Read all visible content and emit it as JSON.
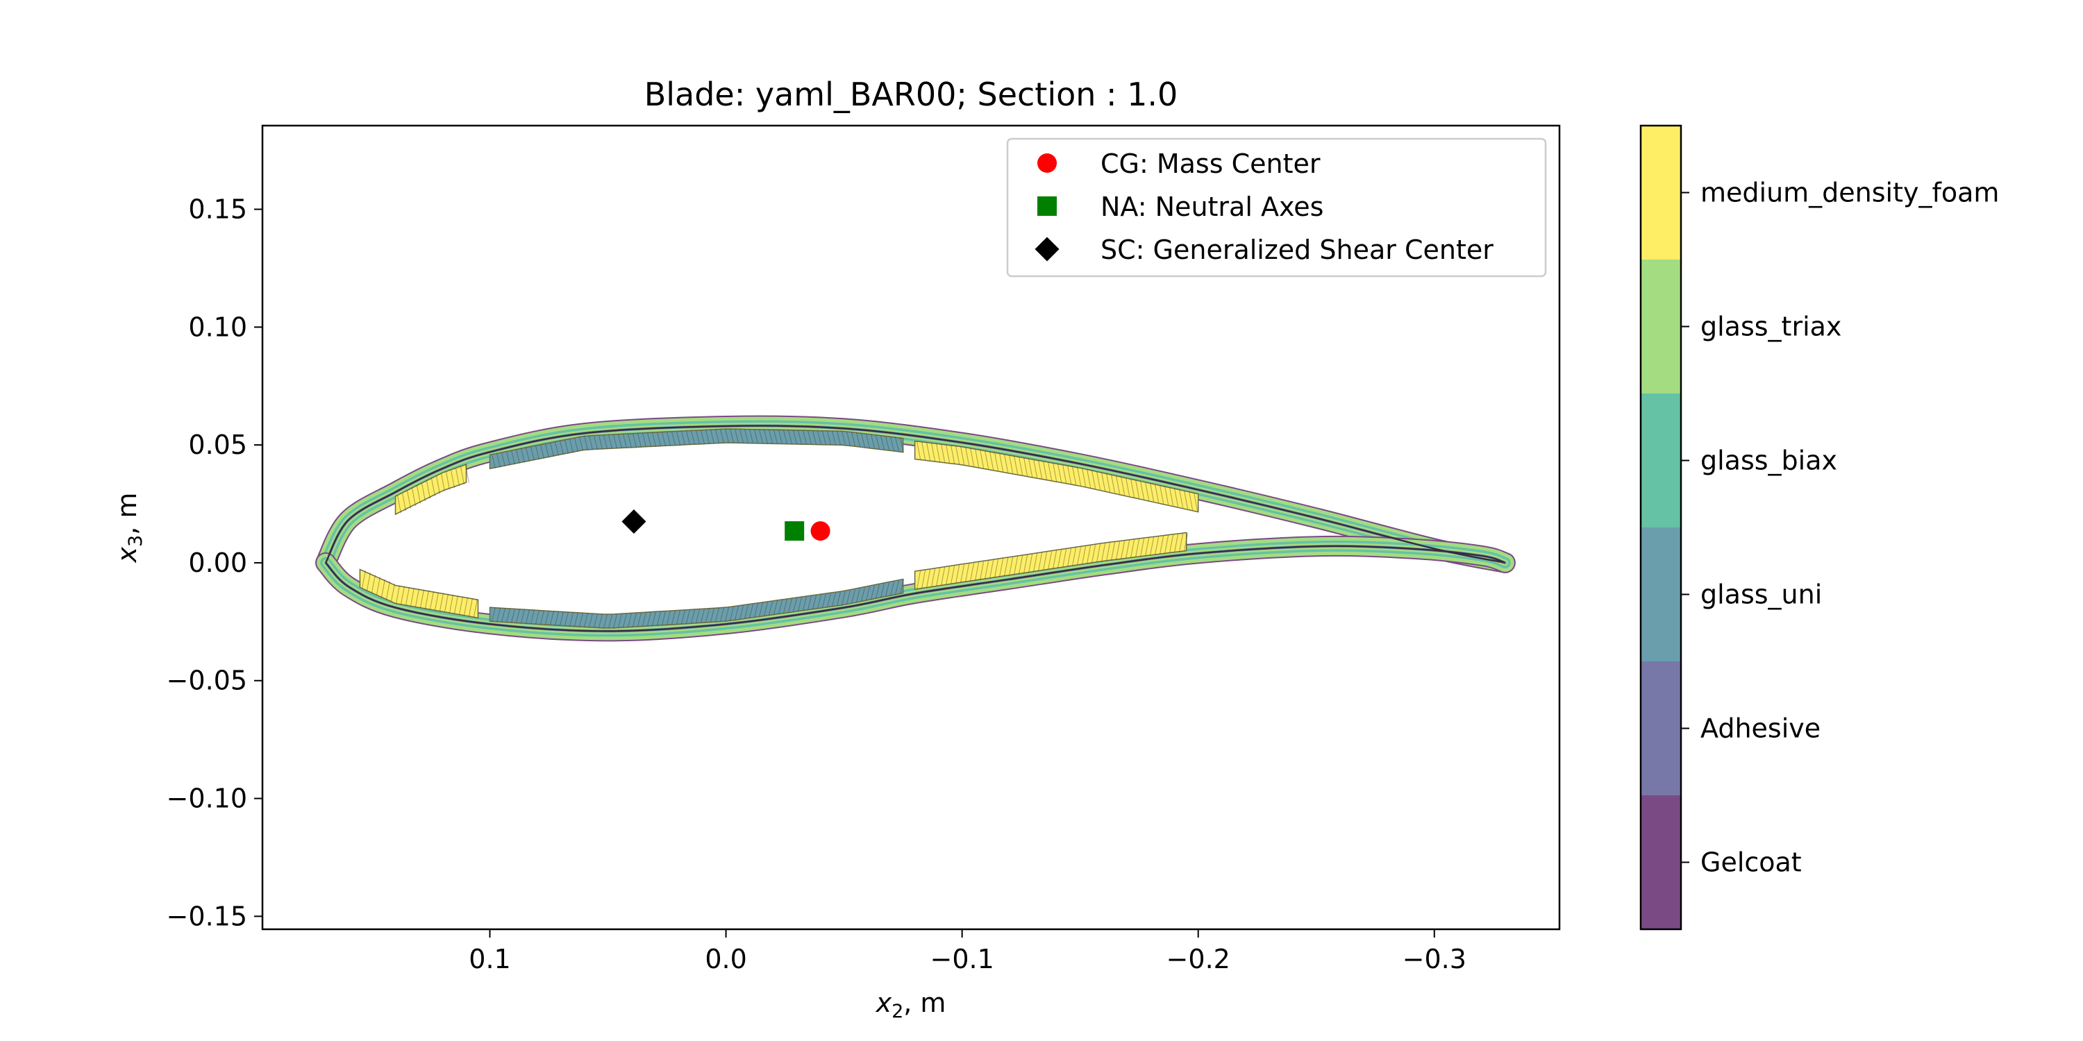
{
  "chart_data": {
    "type": "scatter",
    "title": "Blade: yaml_BAR00; Section : 1.0",
    "xlabel": {
      "base": "x",
      "sub": "2",
      "unit": ", m"
    },
    "ylabel": {
      "base": "x",
      "sub": "3",
      "unit": ", m"
    },
    "xlim": [
      0.1963,
      -0.353
    ],
    "ylim": [
      -0.1555,
      0.1855
    ],
    "x_inverted": true,
    "grid": false,
    "xticks": [
      {
        "value": 0.1,
        "label": "0.1"
      },
      {
        "value": 0.0,
        "label": "0.0"
      },
      {
        "value": -0.1,
        "label": "−0.1"
      },
      {
        "value": -0.2,
        "label": "−0.2"
      },
      {
        "value": -0.3,
        "label": "−0.3"
      }
    ],
    "yticks": [
      {
        "value": 0.15,
        "label": "0.15"
      },
      {
        "value": 0.1,
        "label": "0.10"
      },
      {
        "value": 0.05,
        "label": "0.05"
      },
      {
        "value": 0.0,
        "label": "0.00"
      },
      {
        "value": -0.05,
        "label": "−0.05"
      },
      {
        "value": -0.1,
        "label": "−0.10"
      },
      {
        "value": -0.15,
        "label": "−0.15"
      }
    ],
    "points": [
      {
        "name": "CG: Mass Center",
        "x": -0.04,
        "y": 0.0135,
        "marker": "circle",
        "color": "#ff0000"
      },
      {
        "name": "NA: Neutral Axes",
        "x": -0.029,
        "y": 0.0135,
        "marker": "square",
        "color": "#008000"
      },
      {
        "name": "SC: Generalized Shear Center",
        "x": 0.039,
        "y": 0.0175,
        "marker": "diamond",
        "color": "#000000"
      }
    ],
    "legend": {
      "placement": "top-right",
      "entries": [
        {
          "label": "CG: Mass Center",
          "marker": "circle",
          "color": "#ff0000"
        },
        {
          "label": "NA: Neutral Axes",
          "marker": "square",
          "color": "#008000"
        },
        {
          "label": "SC: Generalized Shear Center",
          "marker": "diamond",
          "color": "#000000"
        }
      ]
    },
    "airfoil": {
      "leading_edge_x": 0.1695,
      "trailing_edge_x": -0.33,
      "upper": [
        [
          0.1695,
          0.0
        ],
        [
          0.16,
          0.018
        ],
        [
          0.14,
          0.03
        ],
        [
          0.12,
          0.04
        ],
        [
          0.1,
          0.047
        ],
        [
          0.06,
          0.055
        ],
        [
          0.0,
          0.058
        ],
        [
          -0.05,
          0.057
        ],
        [
          -0.1,
          0.051
        ],
        [
          -0.15,
          0.042
        ],
        [
          -0.2,
          0.031
        ],
        [
          -0.25,
          0.019
        ],
        [
          -0.3,
          0.006
        ],
        [
          -0.33,
          0.0
        ]
      ],
      "lower": [
        [
          0.1695,
          0.0
        ],
        [
          0.16,
          -0.01
        ],
        [
          0.14,
          -0.019
        ],
        [
          0.1,
          -0.026
        ],
        [
          0.05,
          -0.029
        ],
        [
          0.0,
          -0.026
        ],
        [
          -0.05,
          -0.019
        ],
        [
          -0.08,
          -0.013
        ],
        [
          -0.12,
          -0.007
        ],
        [
          -0.16,
          -0.001
        ],
        [
          -0.2,
          0.004
        ],
        [
          -0.25,
          0.007
        ],
        [
          -0.29,
          0.006
        ],
        [
          -0.32,
          0.003
        ],
        [
          -0.33,
          0.0
        ]
      ],
      "foam_panels": [
        {
          "surface": "upper",
          "x_from": 0.14,
          "x_to": 0.11
        },
        {
          "surface": "upper",
          "x_from": -0.08,
          "x_to": -0.2
        },
        {
          "surface": "lower",
          "x_from": 0.155,
          "x_to": 0.105
        },
        {
          "surface": "lower",
          "x_from": -0.08,
          "x_to": -0.195
        }
      ],
      "spar_caps": [
        {
          "surface": "upper",
          "x_from": 0.1,
          "x_to": -0.075
        },
        {
          "surface": "lower",
          "x_from": 0.1,
          "x_to": -0.075
        }
      ]
    },
    "colorbar": {
      "categories": [
        "Gelcoat",
        "Adhesive",
        "glass_uni",
        "glass_biax",
        "glass_triax",
        "medium_density_foam"
      ],
      "colors": [
        "#7a4a85",
        "#7878a8",
        "#6a9ead",
        "#66c2a5",
        "#a4dc82",
        "#fdee66"
      ]
    }
  }
}
